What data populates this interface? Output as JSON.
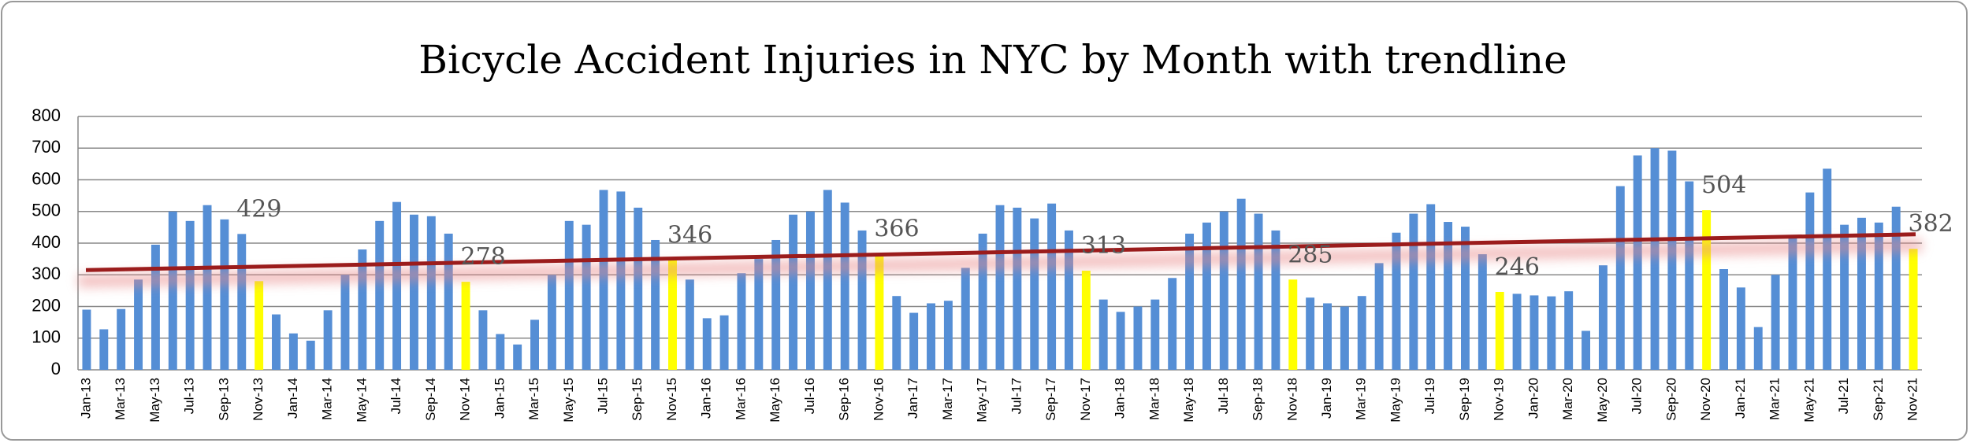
{
  "chart_data": {
    "type": "bar",
    "title": "Bicycle Accident Injuries in NYC by Month with trendline",
    "categories": [
      "Jan-13",
      null,
      "Mar-13",
      null,
      "May-13",
      null,
      "Jul-13",
      null,
      "Sep-13",
      null,
      "Nov-13",
      null,
      "Jan-14",
      null,
      "Mar-14",
      null,
      "May-14",
      null,
      "Jul-14",
      null,
      "Sep-14",
      null,
      "Nov-14",
      null,
      "Jan-15",
      null,
      "Mar-15",
      null,
      "May-15",
      null,
      "Jul-15",
      null,
      "Sep-15",
      null,
      "Nov-15",
      null,
      "Jan-16",
      null,
      "Mar-16",
      null,
      "May-16",
      null,
      "Jul-16",
      null,
      "Sep-16",
      null,
      "Nov-16",
      null,
      "Jan-17",
      null,
      "Mar-17",
      null,
      "May-17",
      null,
      "Jul-17",
      null,
      "Sep-17",
      null,
      "Nov-17",
      null,
      "Jan-18",
      null,
      "Mar-18",
      null,
      "May-18",
      null,
      "Jul-18",
      null,
      "Sep-18",
      null,
      "Nov-18",
      null,
      "Jan-19",
      null,
      "Mar-19",
      null,
      "May-19",
      null,
      "Jul-19",
      null,
      "Sep-19",
      null,
      "Nov-19",
      null,
      "Jan-20",
      null,
      "Mar-20",
      null,
      "May-20",
      null,
      "Jul-20",
      null,
      "Sep-20",
      null,
      "Nov-20",
      null,
      "Jan-21",
      null,
      "Mar-21",
      null,
      "May-21",
      null,
      "Jul-21",
      null,
      "Sep-21",
      null,
      "Nov-21"
    ],
    "values": [
      190,
      128,
      192,
      285,
      395,
      500,
      470,
      520,
      475,
      429,
      280,
      175,
      115,
      92,
      188,
      300,
      380,
      470,
      530,
      490,
      485,
      430,
      278,
      188,
      113,
      80,
      158,
      300,
      470,
      458,
      568,
      563,
      512,
      410,
      346,
      285,
      163,
      172,
      305,
      350,
      410,
      490,
      500,
      568,
      528,
      440,
      366,
      233,
      180,
      210,
      218,
      322,
      430,
      520,
      512,
      478,
      525,
      440,
      313,
      222,
      183,
      200,
      222,
      290,
      430,
      465,
      500,
      540,
      493,
      440,
      285,
      228,
      210,
      200,
      233,
      337,
      433,
      493,
      523,
      467,
      452,
      365,
      246,
      240,
      235,
      232,
      248,
      123,
      330,
      580,
      677,
      700,
      692,
      595,
      504,
      318,
      260,
      135,
      300,
      415,
      560,
      635,
      458,
      480,
      465,
      515,
      382
    ],
    "value_labels": [
      null,
      null,
      null,
      null,
      null,
      null,
      null,
      null,
      null,
      "429",
      null,
      null,
      null,
      null,
      null,
      null,
      null,
      null,
      null,
      null,
      null,
      null,
      "278",
      null,
      null,
      null,
      null,
      null,
      null,
      null,
      null,
      null,
      null,
      null,
      "346",
      null,
      null,
      null,
      null,
      null,
      null,
      null,
      null,
      null,
      null,
      null,
      "366",
      null,
      null,
      null,
      null,
      null,
      null,
      null,
      null,
      null,
      null,
      null,
      "313",
      null,
      null,
      null,
      null,
      null,
      null,
      null,
      null,
      null,
      null,
      null,
      "285",
      null,
      null,
      null,
      null,
      null,
      null,
      null,
      null,
      null,
      null,
      null,
      "246",
      null,
      null,
      null,
      null,
      null,
      null,
      null,
      null,
      null,
      null,
      null,
      "504",
      null,
      null,
      null,
      null,
      null,
      null,
      null,
      null,
      null,
      null,
      null,
      "382"
    ],
    "colors": [
      "#558ed5",
      "#558ed5",
      "#558ed5",
      "#558ed5",
      "#558ed5",
      "#558ed5",
      "#558ed5",
      "#558ed5",
      "#558ed5",
      "#558ed5",
      "#ffff00",
      "#558ed5",
      "#558ed5",
      "#558ed5",
      "#558ed5",
      "#558ed5",
      "#558ed5",
      "#558ed5",
      "#558ed5",
      "#558ed5",
      "#558ed5",
      "#558ed5",
      "#ffff00",
      "#558ed5",
      "#558ed5",
      "#558ed5",
      "#558ed5",
      "#558ed5",
      "#558ed5",
      "#558ed5",
      "#558ed5",
      "#558ed5",
      "#558ed5",
      "#558ed5",
      "#ffff00",
      "#558ed5",
      "#558ed5",
      "#558ed5",
      "#558ed5",
      "#558ed5",
      "#558ed5",
      "#558ed5",
      "#558ed5",
      "#558ed5",
      "#558ed5",
      "#558ed5",
      "#ffff00",
      "#558ed5",
      "#558ed5",
      "#558ed5",
      "#558ed5",
      "#558ed5",
      "#558ed5",
      "#558ed5",
      "#558ed5",
      "#558ed5",
      "#558ed5",
      "#558ed5",
      "#ffff00",
      "#558ed5",
      "#558ed5",
      "#558ed5",
      "#558ed5",
      "#558ed5",
      "#558ed5",
      "#558ed5",
      "#558ed5",
      "#558ed5",
      "#558ed5",
      "#558ed5",
      "#ffff00",
      "#558ed5",
      "#558ed5",
      "#558ed5",
      "#558ed5",
      "#558ed5",
      "#558ed5",
      "#558ed5",
      "#558ed5",
      "#558ed5",
      "#558ed5",
      "#558ed5",
      "#ffff00",
      "#558ed5",
      "#558ed5",
      "#558ed5",
      "#558ed5",
      "#558ed5",
      "#558ed5",
      "#558ed5",
      "#558ed5",
      "#558ed5",
      "#558ed5",
      "#558ed5",
      "#ffff00",
      "#558ed5",
      "#558ed5",
      "#558ed5",
      "#558ed5",
      "#558ed5",
      "#558ed5",
      "#558ed5",
      "#558ed5",
      "#558ed5",
      "#558ed5",
      "#558ed5",
      "#ffff00"
    ],
    "trendline": {
      "values": [
        315,
        428
      ],
      "color": "#9b1c1c"
    },
    "ylim": [
      0,
      800
    ],
    "yticks": [
      0,
      100,
      200,
      300,
      400,
      500,
      600,
      700,
      800
    ],
    "grid": true
  }
}
